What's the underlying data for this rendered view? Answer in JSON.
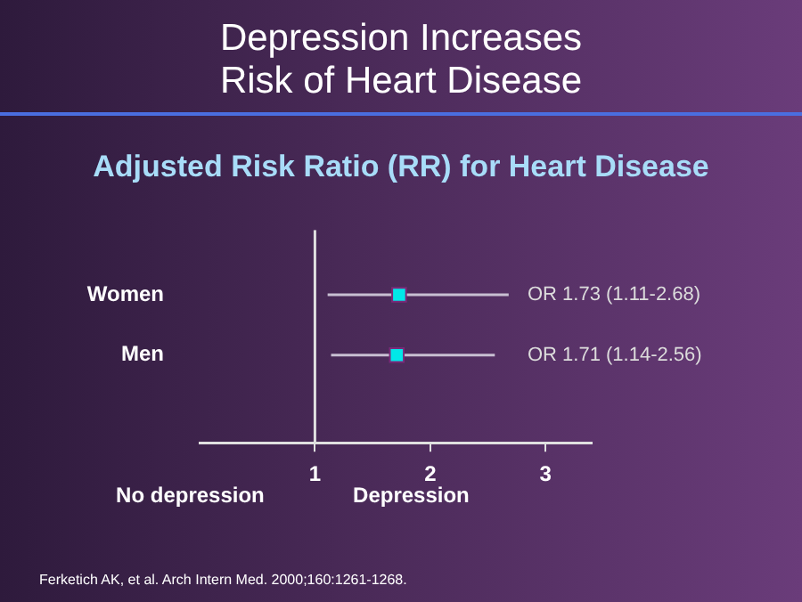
{
  "chart_data": {
    "type": "scatter",
    "title": "Depression Increases\nRisk of Heart Disease",
    "subtitle": "Adjusted Risk Ratio (RR) for Heart Disease",
    "orientation": "horizontal",
    "categories": [
      "Women",
      "Men"
    ],
    "values": [
      1.73,
      1.71
    ],
    "errors": [
      [
        1.11,
        2.68
      ],
      [
        1.14,
        2.56
      ]
    ],
    "value_labels": [
      "OR 1.73 (1.11-2.68)",
      "OR 1.71 (1.14-2.56)"
    ],
    "color": "#00e8e8",
    "marker": "square",
    "xlim": [
      0,
      3.4
    ],
    "xticks": [
      1,
      2,
      3
    ],
    "ref_lines": [
      {
        "axis": "x",
        "value": 1,
        "color": "#e0e0e0"
      }
    ],
    "annotations": [
      "No depression",
      "Depression",
      "Ferketich AK, et al. Arch Intern Med. 2000;160:1261-1268."
    ],
    "legend": false
  }
}
